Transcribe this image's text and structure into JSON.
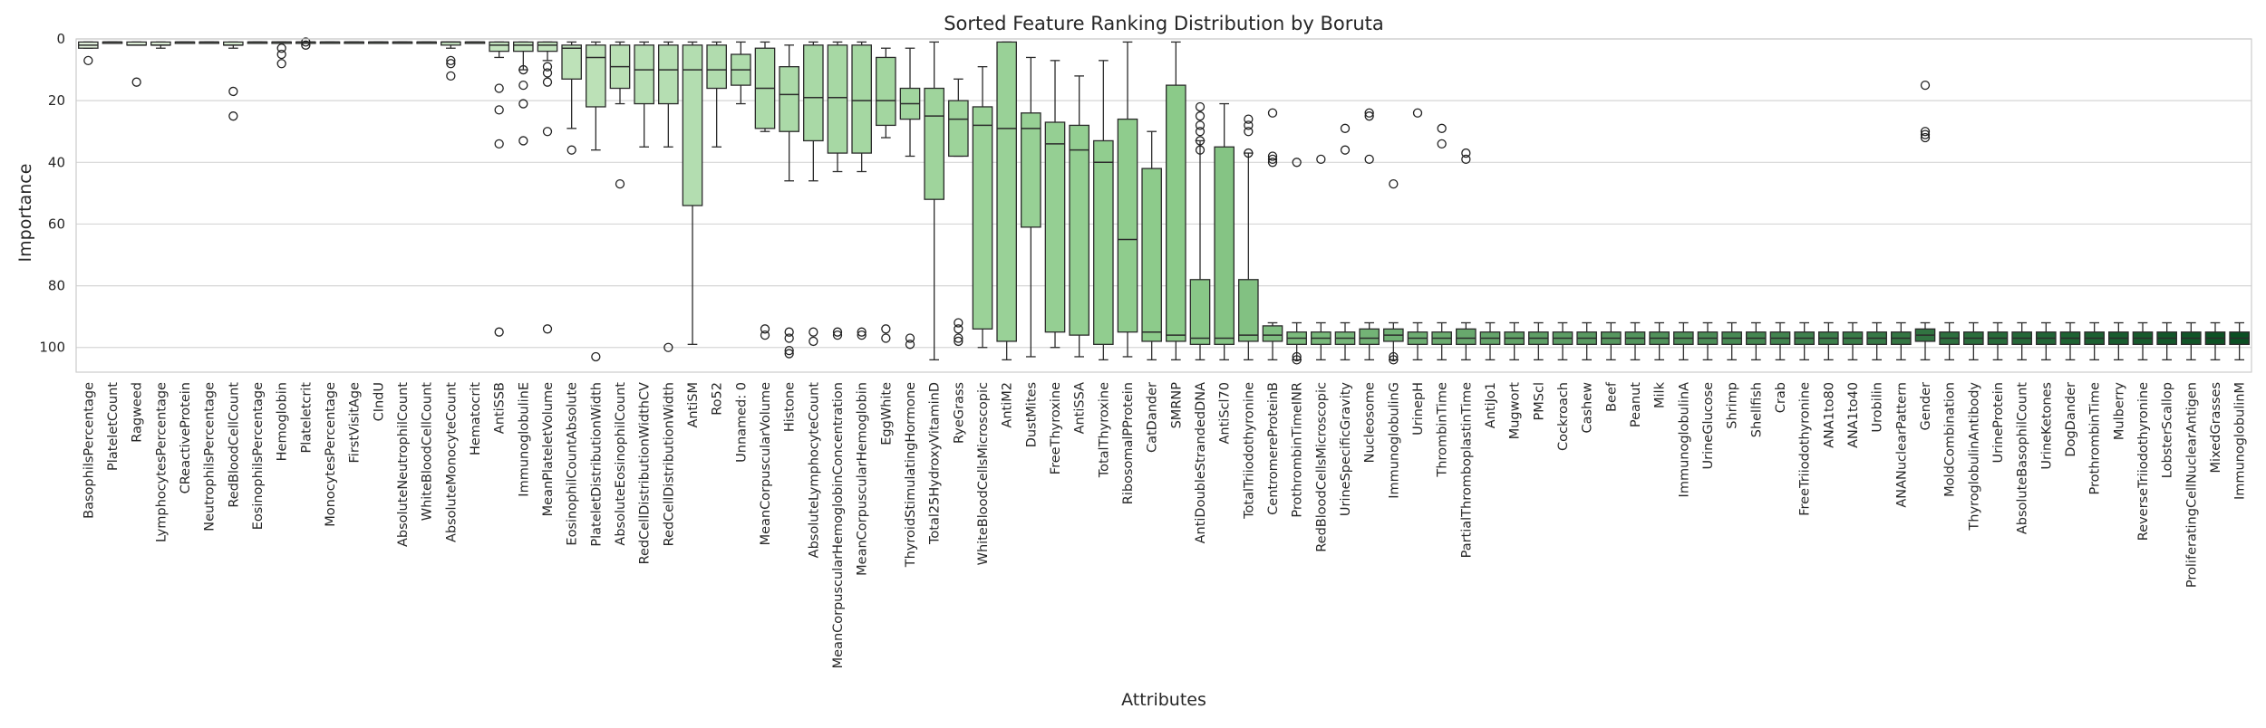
{
  "chart_data": {
    "type": "box",
    "title": "Sorted Feature Ranking Distribution by Boruta",
    "xlabel": "Attributes",
    "ylabel": "Importance",
    "ylim": [
      0,
      108
    ],
    "y_inverted": true,
    "yticks": [
      0,
      20,
      40,
      60,
      80,
      100
    ],
    "grid": "horizontal",
    "colors": {
      "light": "#e6f5e0",
      "mid": "#8ccb8a",
      "dark": "#0b4f23"
    },
    "boxes": [
      {
        "name": "BasophilsPercentage",
        "whislo": 1,
        "q1": 1,
        "med": 2,
        "q3": 3,
        "whishi": 3,
        "fliers": [
          7
        ]
      },
      {
        "name": "PlateletCount",
        "whislo": 1,
        "q1": 1,
        "med": 1,
        "q3": 1,
        "whishi": 1,
        "fliers": []
      },
      {
        "name": "Ragweed",
        "whislo": 1,
        "q1": 1,
        "med": 2,
        "q3": 2,
        "whishi": 2,
        "fliers": [
          14
        ]
      },
      {
        "name": "LymphocytesPercentage",
        "whislo": 1,
        "q1": 1,
        "med": 2,
        "q3": 2,
        "whishi": 3,
        "fliers": []
      },
      {
        "name": "CReactiveProtein",
        "whislo": 1,
        "q1": 1,
        "med": 1,
        "q3": 1,
        "whishi": 1,
        "fliers": []
      },
      {
        "name": "NeutrophilsPercentage",
        "whislo": 1,
        "q1": 1,
        "med": 1,
        "q3": 1,
        "whishi": 1,
        "fliers": []
      },
      {
        "name": "RedBloodCellCount",
        "whislo": 1,
        "q1": 1,
        "med": 2,
        "q3": 2,
        "whishi": 3,
        "fliers": [
          17,
          25
        ]
      },
      {
        "name": "EosinophilsPercentage",
        "whislo": 1,
        "q1": 1,
        "med": 1,
        "q3": 1,
        "whishi": 1,
        "fliers": []
      },
      {
        "name": "Hemoglobin",
        "whislo": 1,
        "q1": 1,
        "med": 1,
        "q3": 1,
        "whishi": 1,
        "fliers": [
          3,
          5,
          8
        ]
      },
      {
        "name": "Plateletcrit",
        "whislo": 1,
        "q1": 1,
        "med": 1,
        "q3": 1,
        "whishi": 1,
        "fliers": [
          1,
          2
        ]
      },
      {
        "name": "MonocytesPercentage",
        "whislo": 1,
        "q1": 1,
        "med": 1,
        "q3": 1,
        "whishi": 1,
        "fliers": []
      },
      {
        "name": "FirstVisitAge",
        "whislo": 1,
        "q1": 1,
        "med": 1,
        "q3": 1,
        "whishi": 1,
        "fliers": []
      },
      {
        "name": "CIndU",
        "whislo": 1,
        "q1": 1,
        "med": 1,
        "q3": 1,
        "whishi": 1,
        "fliers": []
      },
      {
        "name": "AbsoluteNeutrophilCount",
        "whislo": 1,
        "q1": 1,
        "med": 1,
        "q3": 1,
        "whishi": 1,
        "fliers": []
      },
      {
        "name": "WhiteBloodCellCount",
        "whislo": 1,
        "q1": 1,
        "med": 1,
        "q3": 1,
        "whishi": 1,
        "fliers": []
      },
      {
        "name": "AbsoluteMonocyteCount",
        "whislo": 1,
        "q1": 1,
        "med": 1,
        "q3": 2,
        "whishi": 3,
        "fliers": [
          7,
          8,
          12
        ]
      },
      {
        "name": "Hematocrit",
        "whislo": 1,
        "q1": 1,
        "med": 1,
        "q3": 1,
        "whishi": 1,
        "fliers": []
      },
      {
        "name": "AntiSSB",
        "whislo": 1,
        "q1": 1,
        "med": 2,
        "q3": 4,
        "whishi": 6,
        "fliers": [
          16,
          23,
          34,
          95
        ]
      },
      {
        "name": "ImmunoglobulinE",
        "whislo": 1,
        "q1": 1,
        "med": 2,
        "q3": 4,
        "whishi": 10,
        "fliers": [
          10,
          15,
          21,
          33
        ]
      },
      {
        "name": "MeanPlateletVolume",
        "whislo": 1,
        "q1": 1,
        "med": 2,
        "q3": 4,
        "whishi": 7,
        "fliers": [
          9,
          11,
          14,
          30,
          94
        ]
      },
      {
        "name": "EosinophilCountAbsolute",
        "whislo": 1,
        "q1": 2,
        "med": 3,
        "q3": 13,
        "whishi": 29,
        "fliers": [
          36
        ]
      },
      {
        "name": "PlateletDistributionWidth",
        "whislo": 1,
        "q1": 2,
        "med": 6,
        "q3": 22,
        "whishi": 36,
        "fliers": [
          103
        ]
      },
      {
        "name": "AbsoluteEosinophilCount",
        "whislo": 1,
        "q1": 2,
        "med": 9,
        "q3": 16,
        "whishi": 21,
        "fliers": [
          47
        ]
      },
      {
        "name": "RedCellDistributionWidthCV",
        "whislo": 1,
        "q1": 2,
        "med": 10,
        "q3": 21,
        "whishi": 35,
        "fliers": []
      },
      {
        "name": "RedCellDistributionWidth",
        "whislo": 1,
        "q1": 2,
        "med": 10,
        "q3": 21,
        "whishi": 35,
        "fliers": [
          100
        ]
      },
      {
        "name": "AntiSM",
        "whislo": 1,
        "q1": 2,
        "med": 10,
        "q3": 54,
        "whishi": 99,
        "fliers": []
      },
      {
        "name": "Ro52",
        "whislo": 1,
        "q1": 2,
        "med": 10,
        "q3": 16,
        "whishi": 35,
        "fliers": []
      },
      {
        "name": "Unnamed: 0",
        "whislo": 1,
        "q1": 5,
        "med": 10,
        "q3": 15,
        "whishi": 21,
        "fliers": []
      },
      {
        "name": "MeanCorpuscularVolume",
        "whislo": 1,
        "q1": 3,
        "med": 16,
        "q3": 29,
        "whishi": 30,
        "fliers": [
          94,
          96
        ]
      },
      {
        "name": "Histone",
        "whislo": 2,
        "q1": 9,
        "med": 18,
        "q3": 30,
        "whishi": 46,
        "fliers": [
          95,
          97,
          101,
          102
        ]
      },
      {
        "name": "AbsoluteLymphocyteCount",
        "whislo": 1,
        "q1": 2,
        "med": 19,
        "q3": 33,
        "whishi": 46,
        "fliers": [
          95,
          98
        ]
      },
      {
        "name": "MeanCorpuscularHemoglobinConcentration",
        "whislo": 1,
        "q1": 2,
        "med": 19,
        "q3": 37,
        "whishi": 43,
        "fliers": [
          95,
          96
        ]
      },
      {
        "name": "MeanCorpuscularHemoglobin",
        "whislo": 1,
        "q1": 2,
        "med": 20,
        "q3": 37,
        "whishi": 43,
        "fliers": [
          95,
          96
        ]
      },
      {
        "name": "EggWhite",
        "whislo": 3,
        "q1": 6,
        "med": 20,
        "q3": 28,
        "whishi": 32,
        "fliers": [
          94,
          97
        ]
      },
      {
        "name": "ThyroidStimulatingHormone",
        "whislo": 3,
        "q1": 16,
        "med": 21,
        "q3": 26,
        "whishi": 38,
        "fliers": [
          97,
          99
        ]
      },
      {
        "name": "Total25HydroxyVitaminD",
        "whislo": 1,
        "q1": 16,
        "med": 25,
        "q3": 52,
        "whishi": 104,
        "fliers": []
      },
      {
        "name": "RyeGrass",
        "whislo": 13,
        "q1": 20,
        "med": 26,
        "q3": 38,
        "whishi": 38,
        "fliers": [
          92,
          94,
          97,
          98
        ]
      },
      {
        "name": "WhiteBloodCellsMicroscopic",
        "whislo": 9,
        "q1": 22,
        "med": 28,
        "q3": 94,
        "whishi": 100,
        "fliers": []
      },
      {
        "name": "AntiM2",
        "whislo": 1,
        "q1": 1,
        "med": 29,
        "q3": 98,
        "whishi": 104,
        "fliers": []
      },
      {
        "name": "DustMites",
        "whislo": 6,
        "q1": 24,
        "med": 29,
        "q3": 61,
        "whishi": 103,
        "fliers": []
      },
      {
        "name": "FreeThyroxine",
        "whislo": 7,
        "q1": 27,
        "med": 34,
        "q3": 95,
        "whishi": 100,
        "fliers": []
      },
      {
        "name": "AntiSSA",
        "whislo": 12,
        "q1": 28,
        "med": 36,
        "q3": 96,
        "whishi": 103,
        "fliers": []
      },
      {
        "name": "TotalThyroxine",
        "whislo": 7,
        "q1": 33,
        "med": 40,
        "q3": 99,
        "whishi": 104,
        "fliers": []
      },
      {
        "name": "RibosomalPProtein",
        "whislo": 1,
        "q1": 26,
        "med": 65,
        "q3": 95,
        "whishi": 103,
        "fliers": []
      },
      {
        "name": "CatDander",
        "whislo": 30,
        "q1": 42,
        "med": 95,
        "q3": 98,
        "whishi": 104,
        "fliers": []
      },
      {
        "name": "SMRNP",
        "whislo": 1,
        "q1": 15,
        "med": 96,
        "q3": 98,
        "whishi": 104,
        "fliers": []
      },
      {
        "name": "AntiDoubleStrandedDNA",
        "whislo": 33,
        "q1": 78,
        "med": 97,
        "q3": 99,
        "whishi": 104,
        "fliers": [
          22,
          25,
          28,
          30,
          33,
          36
        ]
      },
      {
        "name": "AntiScl70",
        "whislo": 21,
        "q1": 35,
        "med": 97,
        "q3": 99,
        "whishi": 104,
        "fliers": []
      },
      {
        "name": "TotalTriiodothyronine",
        "whislo": 37,
        "q1": 78,
        "med": 96,
        "q3": 98,
        "whishi": 104,
        "fliers": [
          26,
          28,
          30,
          37
        ]
      },
      {
        "name": "CentromereProteinB",
        "whislo": 92,
        "q1": 93,
        "med": 96,
        "q3": 98,
        "whishi": 104,
        "fliers": [
          24,
          38,
          39,
          40
        ]
      },
      {
        "name": "ProthrombinTimeINR",
        "whislo": 92,
        "q1": 95,
        "med": 97,
        "q3": 99,
        "whishi": 104,
        "fliers": [
          40,
          103,
          104
        ]
      },
      {
        "name": "RedBloodCellsMicroscopic",
        "whislo": 92,
        "q1": 95,
        "med": 97,
        "q3": 99,
        "whishi": 104,
        "fliers": [
          39
        ]
      },
      {
        "name": "UrineSpecificGravity",
        "whislo": 92,
        "q1": 95,
        "med": 97,
        "q3": 99,
        "whishi": 104,
        "fliers": [
          29,
          36
        ]
      },
      {
        "name": "Nucleosome",
        "whislo": 92,
        "q1": 94,
        "med": 97,
        "q3": 99,
        "whishi": 104,
        "fliers": [
          24,
          25,
          39
        ]
      },
      {
        "name": "ImmunoglobulinG",
        "whislo": 92,
        "q1": 94,
        "med": 96,
        "q3": 98,
        "whishi": 104,
        "fliers": [
          47,
          103,
          104
        ]
      },
      {
        "name": "UrinepH",
        "whislo": 92,
        "q1": 95,
        "med": 97,
        "q3": 99,
        "whishi": 104,
        "fliers": [
          24
        ]
      },
      {
        "name": "ThrombinTime",
        "whislo": 92,
        "q1": 95,
        "med": 97,
        "q3": 99,
        "whishi": 104,
        "fliers": [
          29,
          34
        ]
      },
      {
        "name": "PartialThromboplastinTime",
        "whislo": 92,
        "q1": 94,
        "med": 97,
        "q3": 99,
        "whishi": 104,
        "fliers": [
          37,
          39
        ]
      },
      {
        "name": "AntiJo1",
        "whislo": 92,
        "q1": 95,
        "med": 97,
        "q3": 99,
        "whishi": 104,
        "fliers": []
      },
      {
        "name": "Mugwort",
        "whislo": 92,
        "q1": 95,
        "med": 97,
        "q3": 99,
        "whishi": 104,
        "fliers": []
      },
      {
        "name": "PMScl",
        "whislo": 92,
        "q1": 95,
        "med": 97,
        "q3": 99,
        "whishi": 104,
        "fliers": []
      },
      {
        "name": "Cockroach",
        "whislo": 92,
        "q1": 95,
        "med": 97,
        "q3": 99,
        "whishi": 104,
        "fliers": []
      },
      {
        "name": "Cashew",
        "whislo": 92,
        "q1": 95,
        "med": 97,
        "q3": 99,
        "whishi": 104,
        "fliers": []
      },
      {
        "name": "Beef",
        "whislo": 92,
        "q1": 95,
        "med": 97,
        "q3": 99,
        "whishi": 104,
        "fliers": []
      },
      {
        "name": "Peanut",
        "whislo": 92,
        "q1": 95,
        "med": 97,
        "q3": 99,
        "whishi": 104,
        "fliers": []
      },
      {
        "name": "Milk",
        "whislo": 92,
        "q1": 95,
        "med": 97,
        "q3": 99,
        "whishi": 104,
        "fliers": []
      },
      {
        "name": "ImmunoglobulinA",
        "whislo": 92,
        "q1": 95,
        "med": 97,
        "q3": 99,
        "whishi": 104,
        "fliers": []
      },
      {
        "name": "UrineGlucose",
        "whislo": 92,
        "q1": 95,
        "med": 97,
        "q3": 99,
        "whishi": 104,
        "fliers": []
      },
      {
        "name": "Shrimp",
        "whislo": 92,
        "q1": 95,
        "med": 97,
        "q3": 99,
        "whishi": 104,
        "fliers": []
      },
      {
        "name": "Shellfish",
        "whislo": 92,
        "q1": 95,
        "med": 97,
        "q3": 99,
        "whishi": 104,
        "fliers": []
      },
      {
        "name": "Crab",
        "whislo": 92,
        "q1": 95,
        "med": 97,
        "q3": 99,
        "whishi": 104,
        "fliers": []
      },
      {
        "name": "FreeTriiodothyronine",
        "whislo": 92,
        "q1": 95,
        "med": 97,
        "q3": 99,
        "whishi": 104,
        "fliers": []
      },
      {
        "name": "ANA1to80",
        "whislo": 92,
        "q1": 95,
        "med": 97,
        "q3": 99,
        "whishi": 104,
        "fliers": []
      },
      {
        "name": "ANA1to40",
        "whislo": 92,
        "q1": 95,
        "med": 97,
        "q3": 99,
        "whishi": 104,
        "fliers": []
      },
      {
        "name": "Urobilin",
        "whislo": 92,
        "q1": 95,
        "med": 97,
        "q3": 99,
        "whishi": 104,
        "fliers": []
      },
      {
        "name": "ANANuclearPattern",
        "whislo": 92,
        "q1": 95,
        "med": 97,
        "q3": 99,
        "whishi": 104,
        "fliers": []
      },
      {
        "name": "Gender",
        "whislo": 92,
        "q1": 94,
        "med": 96,
        "q3": 98,
        "whishi": 104,
        "fliers": [
          15,
          30,
          31,
          32
        ]
      },
      {
        "name": "MoldCombination",
        "whislo": 92,
        "q1": 95,
        "med": 97,
        "q3": 99,
        "whishi": 104,
        "fliers": []
      },
      {
        "name": "ThyroglobulinAntibody",
        "whislo": 92,
        "q1": 95,
        "med": 97,
        "q3": 99,
        "whishi": 104,
        "fliers": []
      },
      {
        "name": "UrineProtein",
        "whislo": 92,
        "q1": 95,
        "med": 97,
        "q3": 99,
        "whishi": 104,
        "fliers": []
      },
      {
        "name": "AbsoluteBasophilCount",
        "whislo": 92,
        "q1": 95,
        "med": 97,
        "q3": 99,
        "whishi": 104,
        "fliers": []
      },
      {
        "name": "UrineKetones",
        "whislo": 92,
        "q1": 95,
        "med": 97,
        "q3": 99,
        "whishi": 104,
        "fliers": []
      },
      {
        "name": "DogDander",
        "whislo": 92,
        "q1": 95,
        "med": 97,
        "q3": 99,
        "whishi": 104,
        "fliers": []
      },
      {
        "name": "ProthrombinTime",
        "whislo": 92,
        "q1": 95,
        "med": 97,
        "q3": 99,
        "whishi": 104,
        "fliers": []
      },
      {
        "name": "Mulberry",
        "whislo": 92,
        "q1": 95,
        "med": 97,
        "q3": 99,
        "whishi": 104,
        "fliers": []
      },
      {
        "name": "ReverseTriiodothyronine",
        "whislo": 92,
        "q1": 95,
        "med": 97,
        "q3": 99,
        "whishi": 104,
        "fliers": []
      },
      {
        "name": "LobsterScallop",
        "whislo": 92,
        "q1": 95,
        "med": 97,
        "q3": 99,
        "whishi": 104,
        "fliers": []
      },
      {
        "name": "ProliferatingCellNuclearAntigen",
        "whislo": 92,
        "q1": 95,
        "med": 97,
        "q3": 99,
        "whishi": 104,
        "fliers": []
      },
      {
        "name": "MixedGrasses",
        "whislo": 92,
        "q1": 95,
        "med": 97,
        "q3": 99,
        "whishi": 104,
        "fliers": []
      },
      {
        "name": "ImmunoglobulinM",
        "whislo": 92,
        "q1": 95,
        "med": 97,
        "q3": 99,
        "whishi": 104,
        "fliers": []
      }
    ]
  }
}
